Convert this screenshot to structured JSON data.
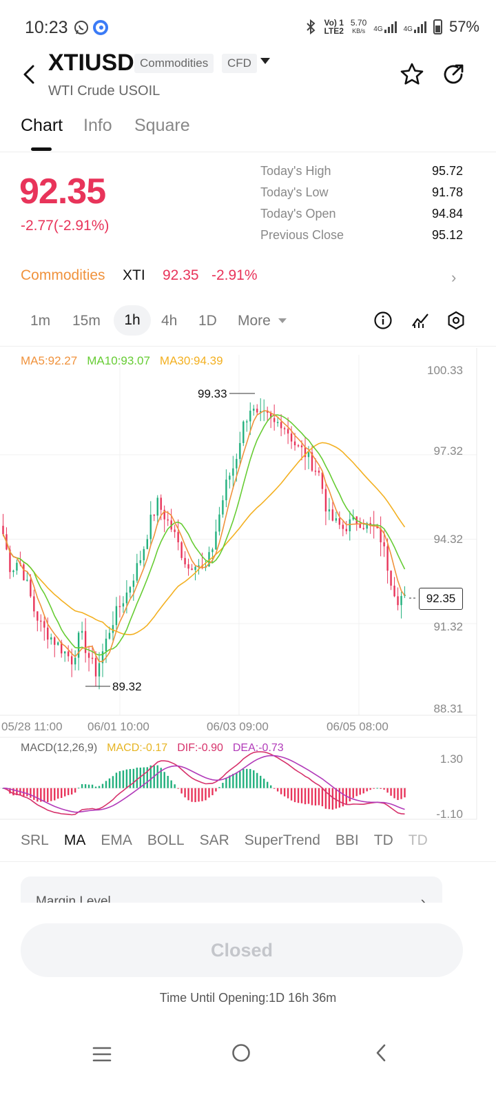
{
  "status_bar": {
    "time": "10:23",
    "network_top": "Vo) 1",
    "network_bottom": "LTE2",
    "speed_value": "5.70",
    "speed_unit": "KB/s",
    "sim1": "4G",
    "sim2": "4G",
    "battery": "57%"
  },
  "header": {
    "symbol": "XTIUSD",
    "tag_category": "Commodities",
    "tag_type": "CFD",
    "subtitle": "WTI Crude USOIL"
  },
  "tabs": [
    {
      "label": "Chart",
      "active": true
    },
    {
      "label": "Info",
      "active": false
    },
    {
      "label": "Square",
      "active": false
    }
  ],
  "quote": {
    "price": "92.35",
    "change": "-2.77(-2.91%)",
    "stats": [
      {
        "label": "Today's High",
        "value": "95.72"
      },
      {
        "label": "Today's Low",
        "value": "91.78"
      },
      {
        "label": "Today's Open",
        "value": "94.84"
      },
      {
        "label": "Previous Close",
        "value": "95.12"
      }
    ]
  },
  "commodities_row": {
    "label": "Commodities",
    "symbol": "XTI",
    "price": "92.35",
    "pct": "-2.91%",
    "arrow": "›"
  },
  "intervals": {
    "items": [
      "1m",
      "15m",
      "1h",
      "4h",
      "1D"
    ],
    "active": "1h",
    "more": "More"
  },
  "ma_legend": {
    "ma5": "MA5:92.27",
    "ma10": "MA10:93.07",
    "ma30": "MA30:94.39"
  },
  "macd_legend": {
    "name": "MACD(12,26,9)",
    "macd": "MACD:-0.17",
    "dif": "DIF:-0.90",
    "dea": "DEA:-0.73"
  },
  "indicator_tabs": [
    "SRL",
    "MA",
    "EMA",
    "BOLL",
    "SAR",
    "SuperTrend",
    "BBI",
    "TD",
    "TD"
  ],
  "active_indicator": "MA",
  "margin_card": {
    "label": "Margin Level",
    "arrow": "›"
  },
  "actions": {
    "closed_label": "Closed",
    "time_until": "Time Until Opening:1D 16h 36m"
  },
  "colors": {
    "up": "#22b07d",
    "down": "#e8345a",
    "ma5": "#f0923c",
    "ma10": "#66cc33",
    "ma30": "#f3b021",
    "dif": "#d6306a",
    "dea": "#b13ab9",
    "macd_text": "#e6b422"
  },
  "chart_data": [
    {
      "type": "candlestick",
      "title": "",
      "y_ticks": [
        "100.33",
        "97.32",
        "94.32",
        "91.32",
        "88.31"
      ],
      "ylim": [
        88.31,
        100.33
      ],
      "x_ticks": [
        "05/28 11:00",
        "06/01 10:00",
        "06/03 09:00",
        "06/05 08:00"
      ],
      "annotations": {
        "high": "99.33",
        "low": "89.32",
        "last": "92.35"
      },
      "close_path": [
        94.5,
        93.2,
        93.6,
        92.8,
        91.8,
        91.2,
        90.9,
        90.6,
        90.3,
        90.0,
        91.0,
        90.2,
        89.6,
        90.4,
        91.3,
        91.9,
        92.4,
        93.1,
        93.8,
        94.9,
        95.6,
        95.1,
        94.6,
        93.9,
        93.3,
        93.6,
        93.1,
        93.9,
        95.2,
        96.4,
        97.0,
        98.3,
        99.0,
        98.6,
        98.7,
        98.4,
        98.5,
        98.1,
        97.6,
        97.4,
        97.0,
        96.6,
        95.2,
        94.9,
        94.7,
        94.9,
        95.0,
        94.8,
        94.7,
        94.3,
        93.1,
        92.2,
        92.35
      ],
      "series": [
        {
          "name": "MA5",
          "value": "92.27"
        },
        {
          "name": "MA10",
          "value": "93.07"
        },
        {
          "name": "MA30",
          "value": "94.39"
        }
      ]
    },
    {
      "type": "bar",
      "title": "MACD(12,26,9)",
      "y_ticks": [
        "1.30",
        "-1.10"
      ],
      "ylim": [
        -1.1,
        1.3
      ],
      "series": [
        {
          "name": "MACD",
          "last": -0.17
        },
        {
          "name": "DIF",
          "last": -0.9
        },
        {
          "name": "DEA",
          "last": -0.73
        }
      ]
    }
  ]
}
